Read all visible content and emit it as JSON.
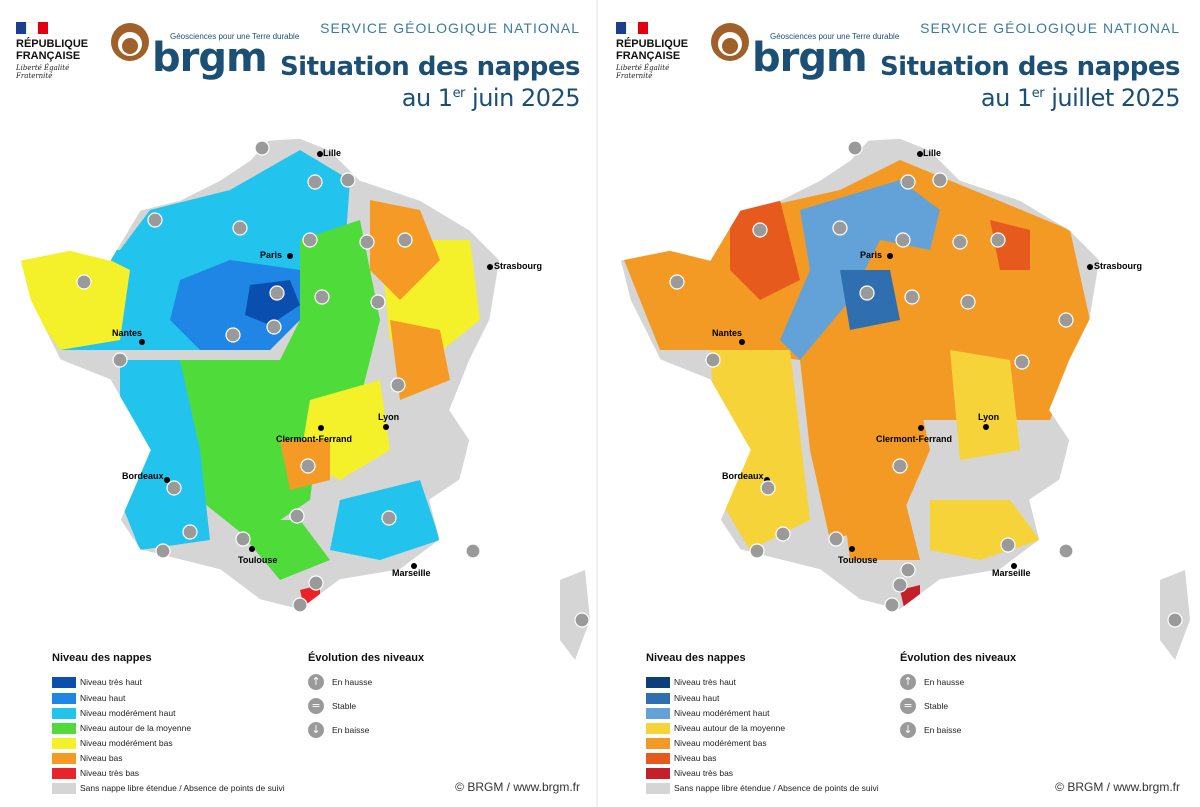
{
  "header": {
    "republic_name": "RÉPUBLIQUE FRANÇAISE",
    "republic_motto": "Liberté Égalité Fraternité",
    "brgm_wordmark": "brgm",
    "brgm_tagline": "Géosciences pour une Terre durable",
    "service": "SERVICE GÉOLOGIQUE NATIONAL"
  },
  "colors": {
    "niveau_tres_haut": "#0a4fb0",
    "niveau_haut": "#1f86e6",
    "niveau_moderement_haut": "#22c4ee",
    "niveau_moyenne": "#4fdc3a",
    "niveau_moderement_bas": "#f4f02a",
    "niveau_bas": "#f59a24",
    "niveau_tres_bas": "#e8232a",
    "sans_nappe": "#d5d5d5",
    "evolution_icon": "#9a9a9a",
    "title": "#1b4f73"
  },
  "panels": [
    {
      "title_line1": "Situation des nappes",
      "title_prefix": "au 1",
      "title_sup": "er",
      "title_suffix": " juin 2025",
      "legend": [
        {
          "label": "Niveau très haut",
          "color": "#0a4fb0"
        },
        {
          "label": "Niveau haut",
          "color": "#1f86e6"
        },
        {
          "label": "Niveau modérément haut",
          "color": "#22c4ee"
        },
        {
          "label": "Niveau autour de la moyenne",
          "color": "#4fdc3a"
        },
        {
          "label": "Niveau modérément bas",
          "color": "#f4f02a"
        },
        {
          "label": "Niveau bas",
          "color": "#f59a24"
        },
        {
          "label": "Niveau très bas",
          "color": "#e8232a"
        },
        {
          "label": "Sans nappe libre étendue / Absence de points de suivi",
          "color": "#d5d5d5"
        }
      ]
    },
    {
      "title_line1": "Situation des nappes",
      "title_prefix": "au 1",
      "title_sup": "er",
      "title_suffix": " juillet 2025",
      "legend": [
        {
          "label": "Niveau très haut",
          "color": "#0b3f7a"
        },
        {
          "label": "Niveau haut",
          "color": "#2f6fb0"
        },
        {
          "label": "Niveau modérément haut",
          "color": "#62a2d8"
        },
        {
          "label": "Niveau autour de la moyenne",
          "color": "#f7d33a"
        },
        {
          "label": "Niveau modérément bas",
          "color": "#f39a25"
        },
        {
          "label": "Niveau bas",
          "color": "#e65a1e"
        },
        {
          "label": "Niveau très bas",
          "color": "#c4202a"
        },
        {
          "label": "Sans nappe libre étendue / Absence de points de suivi",
          "color": "#d5d5d5"
        }
      ]
    }
  ],
  "legend_titles": {
    "niveau": "Niveau des nappes",
    "evolution": "Évolution des niveaux"
  },
  "evolution": [
    {
      "label": "En hausse",
      "icon": "arrow-up-icon"
    },
    {
      "label": "Stable",
      "icon": "equals-icon"
    },
    {
      "label": "En baisse",
      "icon": "arrow-down-icon"
    }
  ],
  "cities": [
    "Lille",
    "Paris",
    "Strasbourg",
    "Nantes",
    "Lyon",
    "Clermont-Ferrand",
    "Bordeaux",
    "Toulouse",
    "Marseille"
  ],
  "credit": "© BRGM / www.brgm.fr"
}
